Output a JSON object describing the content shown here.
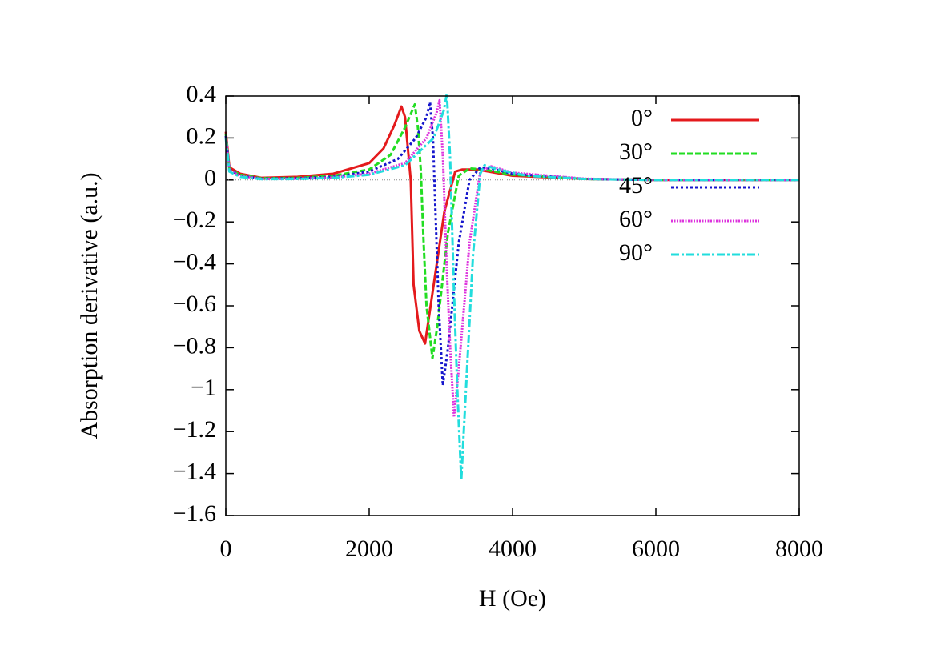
{
  "chart_data": {
    "type": "line",
    "xlabel": "H (Oe)",
    "ylabel": "Absorption derivative (a.u.)",
    "xlim": [
      0,
      8000
    ],
    "xticks": [
      0,
      2000,
      4000,
      6000,
      8000
    ],
    "ylim": [
      -1.6,
      0.4
    ],
    "yticks": [
      0.4,
      0.2,
      0,
      {
        "value": -0.2,
        "label": "−0.2"
      },
      {
        "value": -0.4,
        "label": "−0.4"
      },
      {
        "value": -0.6,
        "label": "−0.6"
      },
      {
        "value": -0.8,
        "label": "−0.8"
      },
      {
        "value": -1,
        "label": "−1"
      },
      {
        "value": -1.2,
        "label": "−1.2"
      },
      {
        "value": -1.4,
        "label": "−1.4"
      },
      {
        "value": -1.6,
        "label": "−1.6"
      }
    ],
    "zero_line": true,
    "legend": "upper right",
    "series": [
      {
        "name": "0°",
        "color": "#e41a1c",
        "dash": "none",
        "x": [
          0,
          50,
          200,
          500,
          1000,
          1500,
          2000,
          2200,
          2350,
          2450,
          2500,
          2540,
          2580,
          2620,
          2700,
          2780,
          2900,
          3050,
          3200,
          3300,
          3500,
          4000,
          5000,
          6000,
          8000
        ],
        "values": [
          0.23,
          0.06,
          0.03,
          0.01,
          0.015,
          0.03,
          0.08,
          0.15,
          0.26,
          0.35,
          0.3,
          0.15,
          0,
          -0.5,
          -0.72,
          -0.78,
          -0.5,
          -0.15,
          0.04,
          0.05,
          0.05,
          0.02,
          0.005,
          0,
          0
        ]
      },
      {
        "name": "30°",
        "color": "#22dd22",
        "dash": "7,3",
        "x": [
          0,
          50,
          200,
          500,
          1000,
          1500,
          2000,
          2300,
          2500,
          2637,
          2680,
          2720,
          2760,
          2800,
          2883,
          2950,
          3100,
          3250,
          3400,
          3600,
          4000,
          5000,
          6000,
          8000
        ],
        "values": [
          0.22,
          0.05,
          0.025,
          0.008,
          0.01,
          0.02,
          0.05,
          0.12,
          0.25,
          0.36,
          0.25,
          0.05,
          -0.3,
          -0.6,
          -0.85,
          -0.7,
          -0.25,
          0.02,
          0.055,
          0.05,
          0.025,
          0.005,
          0,
          0
        ]
      },
      {
        "name": "45°",
        "color": "#1515cc",
        "dash": "3,3",
        "x": [
          0,
          50,
          200,
          500,
          1000,
          1500,
          2000,
          2400,
          2650,
          2800,
          2849,
          2890,
          2930,
          2970,
          3028,
          3100,
          3250,
          3400,
          3550,
          3700,
          4000,
          5000,
          6000,
          8000
        ],
        "values": [
          0.21,
          0.05,
          0.02,
          0.006,
          0.008,
          0.015,
          0.04,
          0.1,
          0.2,
          0.3,
          0.37,
          0.2,
          -0.2,
          -0.6,
          -0.98,
          -0.8,
          -0.3,
          0,
          0.06,
          0.055,
          0.03,
          0.005,
          0,
          0
        ]
      },
      {
        "name": "60°",
        "color": "#dd33dd",
        "dash": "2,1.5",
        "x": [
          0,
          50,
          200,
          500,
          1000,
          1500,
          2000,
          2500,
          2800,
          2940,
          2983,
          3030,
          3080,
          3130,
          3184,
          3250,
          3400,
          3550,
          3700,
          4000,
          5000,
          6000,
          8000
        ],
        "values": [
          0.2,
          0.045,
          0.02,
          0.005,
          0.006,
          0.012,
          0.03,
          0.08,
          0.2,
          0.32,
          0.38,
          0.1,
          -0.4,
          -0.8,
          -1.13,
          -0.9,
          -0.3,
          0.04,
          0.065,
          0.035,
          0.006,
          0,
          0
        ]
      },
      {
        "name": "90°",
        "color": "#22dddd",
        "dash": "10,3,3,3",
        "x": [
          0,
          50,
          200,
          500,
          1000,
          1500,
          2000,
          2500,
          2900,
          3040,
          3084,
          3130,
          3180,
          3230,
          3285,
          3350,
          3450,
          3550,
          3609,
          3800,
          4200,
          5000,
          6000,
          8000
        ],
        "values": [
          0.2,
          0.04,
          0.015,
          0.004,
          0.005,
          0.01,
          0.025,
          0.07,
          0.2,
          0.33,
          0.41,
          0.1,
          -0.5,
          -1.0,
          -1.43,
          -1.0,
          -0.35,
          0.03,
          0.07,
          0.05,
          0.02,
          0.005,
          0,
          0
        ]
      }
    ]
  }
}
